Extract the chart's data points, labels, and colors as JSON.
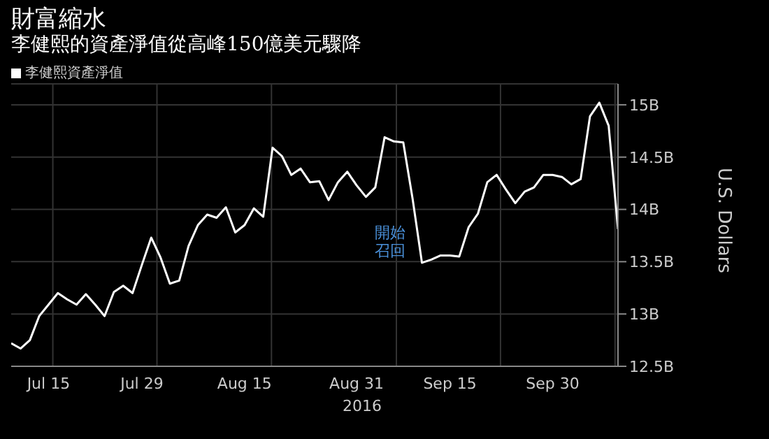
{
  "chart_data": {
    "type": "line",
    "title": "財富縮水",
    "subtitle": "李健熙的資產淨值從高峰150億美元驟降",
    "xlabel": "2016",
    "ylabel": "U.S. Dollars",
    "categories": [
      null,
      null,
      null,
      null,
      "Jul 15",
      null,
      null,
      null,
      null,
      null,
      null,
      null,
      null,
      null,
      "Jul 29",
      null,
      null,
      null,
      null,
      null,
      null,
      null,
      null,
      null,
      null,
      "Aug 15",
      null,
      null,
      null,
      null,
      null,
      null,
      null,
      null,
      null,
      null,
      null,
      "Aug 31",
      null,
      null,
      null,
      null,
      null,
      null,
      null,
      null,
      null,
      "Sep 15",
      null,
      null,
      null,
      null,
      null,
      null,
      null,
      null,
      null,
      null,
      "Sep 30",
      null,
      null,
      null,
      null,
      null,
      null,
      null
    ],
    "series": [
      {
        "name": "李健熙資產淨值",
        "color": "#ffffff",
        "values": [
          12.72,
          12.67,
          12.75,
          12.98,
          13.09,
          13.2,
          13.14,
          13.09,
          13.19,
          13.09,
          12.98,
          13.21,
          13.27,
          13.2,
          13.47,
          13.73,
          13.54,
          13.29,
          13.32,
          13.65,
          13.85,
          13.95,
          13.92,
          14.02,
          13.78,
          13.85,
          14.01,
          13.93,
          14.59,
          14.51,
          14.33,
          14.39,
          14.26,
          14.27,
          14.09,
          14.26,
          14.36,
          14.23,
          14.12,
          14.21,
          14.69,
          14.65,
          14.64,
          14.1,
          13.49,
          13.52,
          13.56,
          13.56,
          13.55,
          13.83,
          13.96,
          14.26,
          14.33,
          14.19,
          14.06,
          14.17,
          14.21,
          14.33,
          14.33,
          14.31,
          14.24,
          14.29,
          14.89,
          15.02,
          14.8,
          13.81
        ]
      }
    ],
    "ylim": [
      12.5,
      15.2
    ],
    "yticks": [
      {
        "value": 12.5,
        "label": "12.5B"
      },
      {
        "value": 13,
        "label": "13B"
      },
      {
        "value": 13.5,
        "label": "13.5B"
      },
      {
        "value": 14,
        "label": "14B"
      },
      {
        "value": 14.5,
        "label": "14.5B"
      },
      {
        "value": 15,
        "label": "15B"
      }
    ],
    "grid": true,
    "legend": "top left",
    "marker": "none",
    "line_style": "solid",
    "annotations": [
      "開始召回"
    ]
  }
}
